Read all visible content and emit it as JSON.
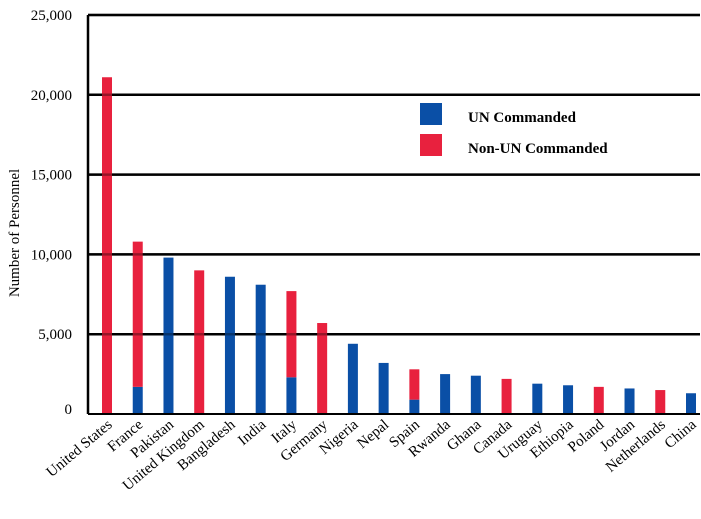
{
  "chart_data": {
    "type": "bar",
    "stacked": true,
    "title": "",
    "xlabel": "",
    "ylabel": "Number of Personnel",
    "ylim": [
      0,
      25000
    ],
    "yticks": [
      0,
      5000,
      10000,
      15000,
      20000,
      25000
    ],
    "ytick_labels": [
      "0",
      "5,000",
      "10,000",
      "15,000",
      "20,000",
      "25,000"
    ],
    "grid": "horizontal",
    "legend_position": "upper-right",
    "categories": [
      "United States",
      "France",
      "Pakistan",
      "United Kingdom",
      "Bangladesh",
      "India",
      "Italy",
      "Germany",
      "Nigeria",
      "Nepal",
      "Spain",
      "Rwanda",
      "Ghana",
      "Canada",
      "Uruguay",
      "Ethiopia",
      "Poland",
      "Jordan",
      "Netherlands",
      "China"
    ],
    "series": [
      {
        "name": "UN Commanded",
        "color": "#0a4fa6",
        "values": [
          0,
          1700,
          9800,
          0,
          8600,
          8100,
          2300,
          0,
          4400,
          3200,
          900,
          2500,
          2400,
          0,
          1900,
          1800,
          0,
          1600,
          0,
          1300
        ]
      },
      {
        "name": "Non-UN Commanded",
        "color": "#e8213e",
        "values": [
          21100,
          9100,
          0,
          9000,
          0,
          0,
          5400,
          5700,
          0,
          0,
          1900,
          0,
          0,
          2200,
          0,
          0,
          1700,
          0,
          1500,
          0
        ]
      }
    ]
  }
}
